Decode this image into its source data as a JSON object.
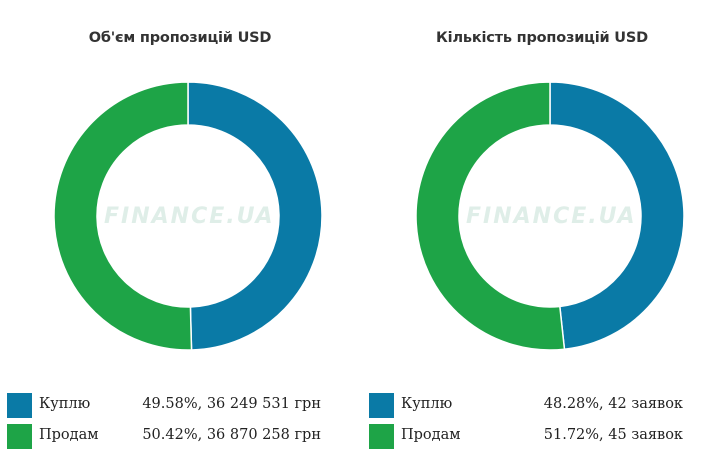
{
  "watermark": "FINANCE.UA",
  "colors": {
    "buy": "#0a7aa6",
    "sell": "#1ea447"
  },
  "chart_data": [
    {
      "type": "pie",
      "title": "Об'єм пропозицій USD",
      "categories": [
        "Куплю",
        "Продам"
      ],
      "values": [
        49.58,
        50.42
      ],
      "legend": [
        {
          "label": "Куплю",
          "value_text": "49.58%, 36 249 531 грн"
        },
        {
          "label": "Продам",
          "value_text": "50.42%, 36 870 258 грн"
        }
      ]
    },
    {
      "type": "pie",
      "title": "Кількість пропозицій USD",
      "categories": [
        "Куплю",
        "Продам"
      ],
      "values": [
        48.28,
        51.72
      ],
      "legend": [
        {
          "label": "Куплю",
          "value_text": "48.28%, 42 заявок"
        },
        {
          "label": "Продам",
          "value_text": "51.72%, 45 заявок"
        }
      ]
    }
  ]
}
